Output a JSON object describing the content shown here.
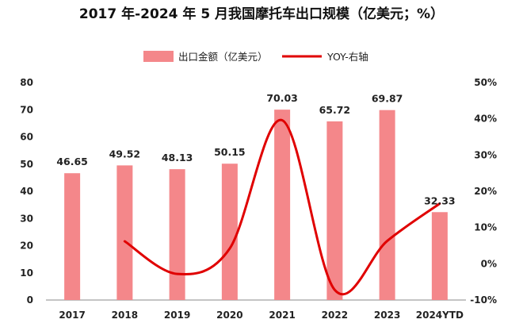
{
  "chart_data": {
    "type": "bar",
    "title": "2017 年-2024 年 5 月我国摩托车出口规模（亿美元；%）",
    "categories": [
      "2017",
      "2018",
      "2019",
      "2020",
      "2021",
      "2022",
      "2023",
      "2024YTD"
    ],
    "series": [
      {
        "name": "出口金额（亿美元）",
        "type": "bar",
        "axis": "left",
        "values": [
          46.65,
          49.52,
          48.13,
          50.15,
          70.03,
          65.72,
          69.87,
          32.33
        ],
        "labels": [
          "46.65",
          "49.52",
          "48.13",
          "50.15",
          "70.03",
          "65.72",
          "69.87",
          "32.33"
        ]
      },
      {
        "name": "YOY-右轴",
        "type": "line",
        "axis": "right",
        "smooth": true,
        "values": [
          null,
          6.2,
          -2.8,
          4.2,
          39.6,
          -7.2,
          6.3,
          16.6
        ]
      }
    ],
    "y_left": {
      "min": 0,
      "max": 80,
      "ticks": [
        0,
        10,
        20,
        30,
        40,
        50,
        60,
        70,
        80
      ],
      "tick_labels": [
        "0",
        "10",
        "20",
        "30",
        "40",
        "50",
        "60",
        "70",
        "80"
      ]
    },
    "y_right": {
      "min": -10,
      "max": 50,
      "ticks": [
        -10,
        0,
        10,
        20,
        30,
        40,
        50
      ],
      "tick_labels": [
        "-10%",
        "0%",
        "10%",
        "20%",
        "30%",
        "40%",
        "50%"
      ]
    },
    "grid": false,
    "legend_position": "top",
    "colors": {
      "bar": "#F4878A",
      "line": "#E00000",
      "axis": "#888888"
    }
  }
}
